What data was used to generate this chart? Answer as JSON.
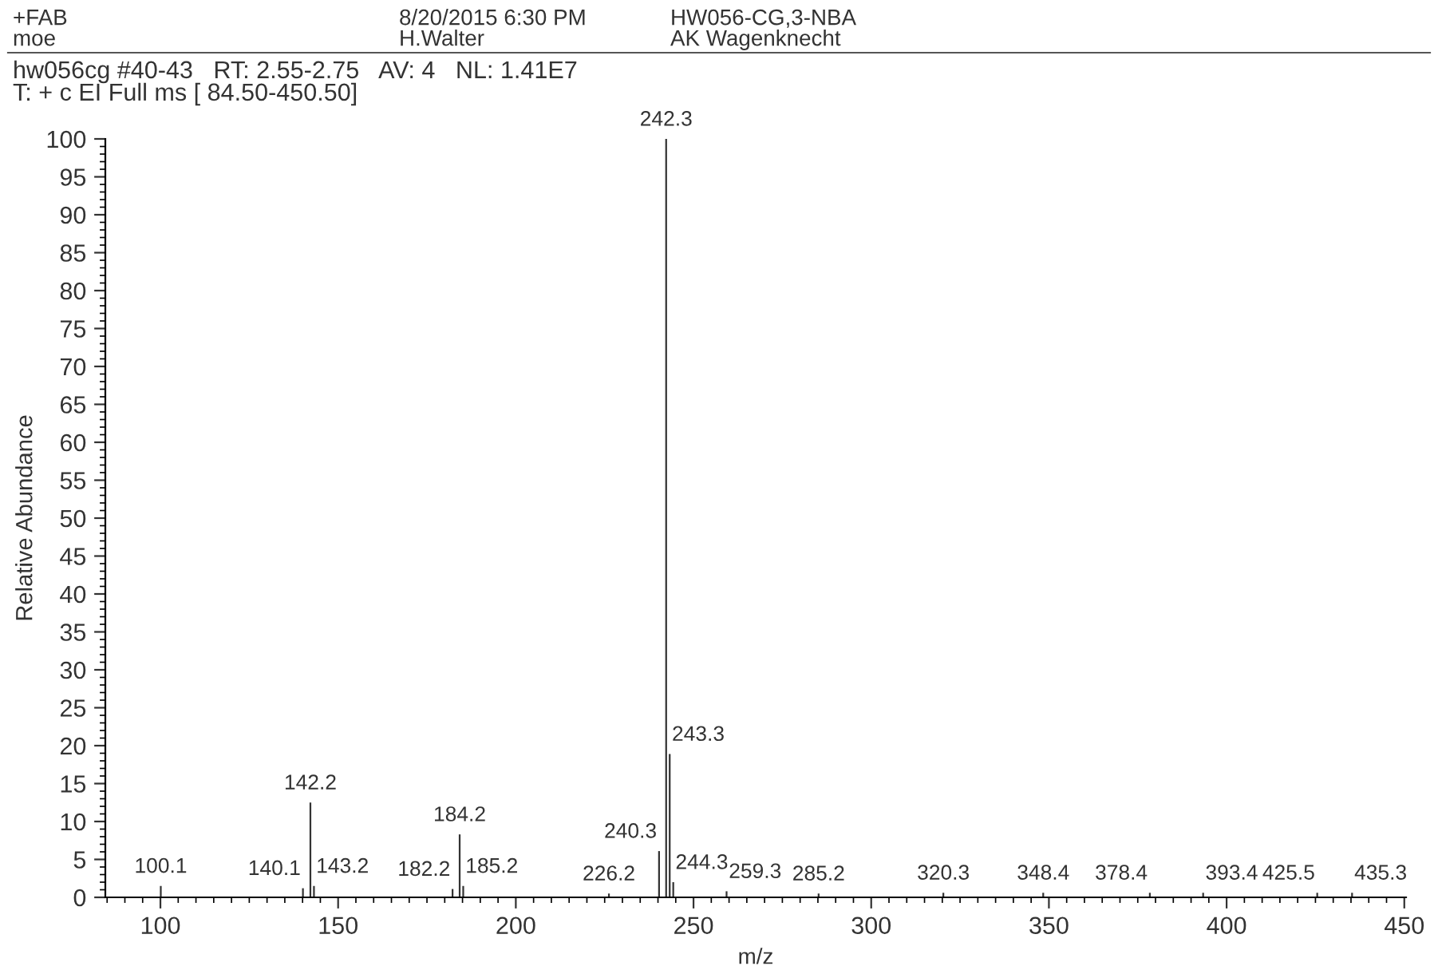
{
  "chart_data": {
    "type": "bar",
    "x": [
      100.1,
      140.1,
      142.2,
      143.2,
      182.2,
      184.2,
      185.2,
      226.2,
      240.3,
      242.3,
      243.3,
      244.3,
      259.3,
      285.2,
      320.3,
      348.4,
      378.4,
      393.4,
      425.5,
      435.3
    ],
    "values": [
      1.5,
      1.2,
      12.5,
      1.5,
      1.1,
      8.3,
      1.5,
      0.5,
      6.1,
      100,
      18.9,
      2,
      0.8,
      0.5,
      0.6,
      0.6,
      0.6,
      0.6,
      0.6,
      0.6
    ],
    "color": "#333333",
    "xlabel": "m/z",
    "ylabel": "Relative Abundance",
    "xlim": [
      84.5,
      450.5
    ],
    "ylim": [
      0,
      100
    ],
    "xticks": [
      100,
      150,
      200,
      250,
      300,
      350,
      400,
      450
    ],
    "yticks": [
      0,
      5,
      10,
      15,
      20,
      25,
      30,
      35,
      40,
      45,
      50,
      55,
      60,
      65,
      70,
      75,
      80,
      85,
      90,
      95,
      100
    ],
    "grid": false,
    "legend": false,
    "annotations": [
      {
        "text": "100.1",
        "x": 100.1,
        "y": 1.5
      },
      {
        "text": "140.1",
        "x": 140.1,
        "y": 1.2
      },
      {
        "text": "142.2",
        "x": 142.2,
        "y": 12.5
      },
      {
        "text": "143.2",
        "x": 143.2,
        "y": 1.5
      },
      {
        "text": "182.2",
        "x": 182.2,
        "y": 1.1
      },
      {
        "text": "184.2",
        "x": 184.2,
        "y": 8.3
      },
      {
        "text": "185.2",
        "x": 185.2,
        "y": 1.5
      },
      {
        "text": "226.2",
        "x": 226.2,
        "y": 0.5
      },
      {
        "text": "240.3",
        "x": 240.3,
        "y": 6.1
      },
      {
        "text": "242.3",
        "x": 242.3,
        "y": 100
      },
      {
        "text": "243.3",
        "x": 243.3,
        "y": 18.9
      },
      {
        "text": "244.3",
        "x": 244.3,
        "y": 2
      },
      {
        "text": "259.3",
        "x": 259.3,
        "y": 0.8
      },
      {
        "text": "285.2",
        "x": 285.2,
        "y": 0.5
      },
      {
        "text": "320.3",
        "x": 320.3,
        "y": 0.6
      },
      {
        "text": "348.4",
        "x": 348.4,
        "y": 0.6
      },
      {
        "text": "378.4",
        "x": 378.4,
        "y": 0.6
      },
      {
        "text": "393.4",
        "x": 393.4,
        "y": 0.6
      },
      {
        "text": "425.5",
        "x": 425.5,
        "y": 0.6
      },
      {
        "text": "435.3",
        "x": 435.3,
        "y": 0.6
      },
      "+FAB",
      "moe",
      "8/20/2015 6:30 PM",
      "H.Walter",
      "HW056-CG,3-NBA",
      "AK Wagenknecht",
      "hw056cg #40-43   RT: 2.55-2.75   AV: 4   NL: 1.41E7",
      "T: + c EI Full ms [ 84.50-450.50]"
    ]
  }
}
